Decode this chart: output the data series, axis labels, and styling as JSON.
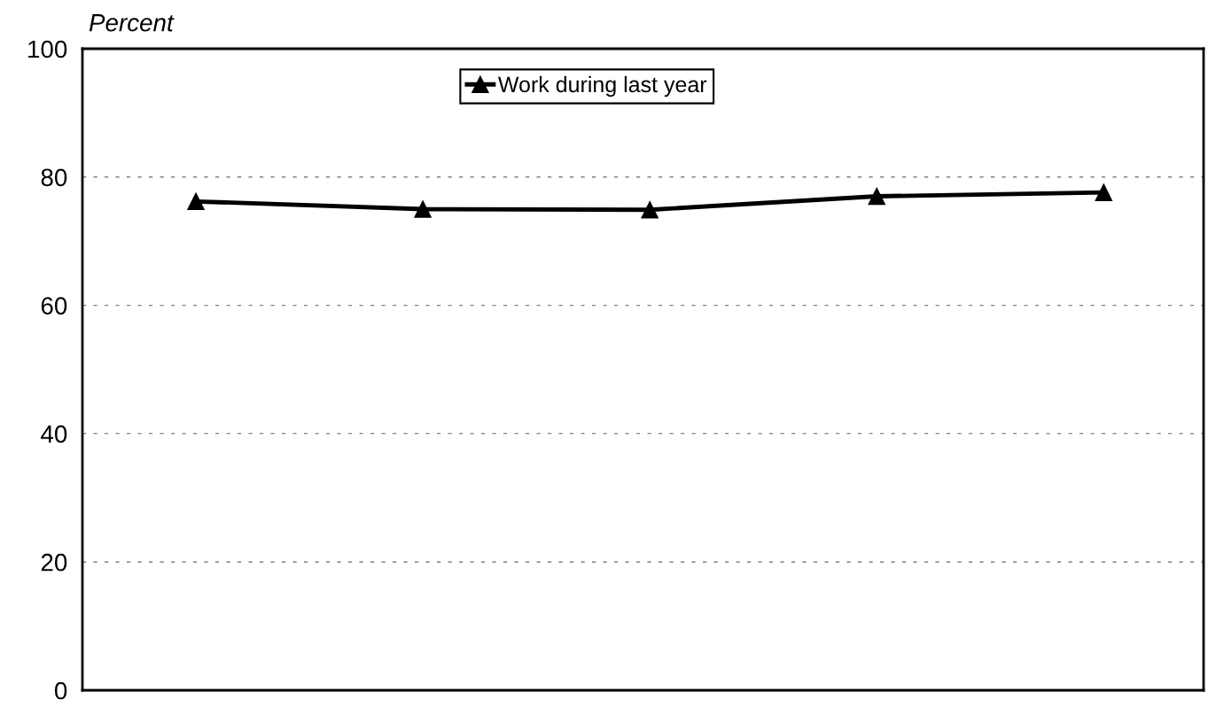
{
  "chart_data": {
    "type": "line",
    "ylabel": "Percent",
    "categories": [
      null,
      null,
      null,
      null,
      null
    ],
    "series": [
      {
        "name": "Work during last year",
        "color": "#000000",
        "values": [
          76.2,
          75.0,
          74.9,
          77.0,
          77.6
        ]
      }
    ],
    "ylim": [
      0,
      100
    ],
    "yticks": [
      0,
      20,
      40,
      60,
      80,
      100
    ],
    "grid": "y",
    "legend": "top",
    "marker": "triangle",
    "line_style": "solid",
    "tick_labels": "y"
  }
}
